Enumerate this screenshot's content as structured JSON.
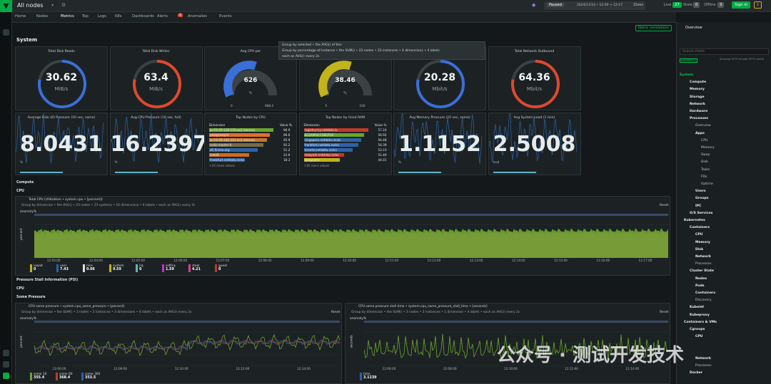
{
  "header": {
    "node_label": "All nodes",
    "paused": "Paused",
    "date": "2024/11/14 • 12:00 → 12:17",
    "window": "15min",
    "live": "Live",
    "live_count": "27",
    "stale": "Stale",
    "stale_count": "0",
    "offline": "Offline",
    "offline_count": "3",
    "signin": "Sign in",
    "alerts": "1"
  },
  "tabs": [
    "Home",
    "Nodes",
    "Metrics",
    "Top",
    "Logs",
    "K8s",
    "Dashboards",
    "Alerts",
    "Anomalies",
    "Events"
  ],
  "alert_badge": "2",
  "section": "System",
  "metric_corr": "Metric correlations",
  "popup": {
    "row1": "Group by selected  •  the AVG() of this",
    "row2": "Group by percentage-of-instance • the SUM() • 23 nodes • 23 instances • 4 dimensions • 4 labels",
    "row3": "each as AVG() every 2s"
  },
  "cards": [
    {
      "title": "Total Disk Reads",
      "value": "30.62",
      "unit": "MiB/s",
      "color": "#3a6fd8"
    },
    {
      "title": "Total Disk Writes",
      "value": "63.4",
      "unit": "MiB/s",
      "color": "#e0482c"
    },
    {
      "title": "Avg CPU per",
      "value": "626",
      "unit": "%",
      "min": "0",
      "max": "988.4",
      "color": "#3a6fd8"
    },
    {
      "title": "",
      "value": "38.46",
      "unit": "%",
      "min": "0",
      "max": "100",
      "color": "#c2b41a"
    },
    {
      "title": "Total Network Inbound",
      "value": "20.28",
      "unit": "Mbit/s",
      "color": "#3a6fd8"
    },
    {
      "title": "Total Network Outbound",
      "value": "64.36",
      "unit": "Mbit/s",
      "color": "#e0482c"
    }
  ],
  "row2": [
    {
      "title": "Average Disk I/O Pressure (10 sec, some)",
      "value": "8.0431",
      "unit": "%"
    },
    {
      "title": "Avg CPU Pressure (10 sec, full)",
      "value": "16.2397",
      "unit": "%"
    },
    {
      "title": "Top Nodes by CPU",
      "table": true
    },
    {
      "title": "Top Nodes by Used RAM",
      "table": true
    },
    {
      "title": "Avg Memory Pressure (10 sec, some)",
      "value": "1.1152",
      "unit": "%"
    },
    {
      "title": "Avg System Load (1 min)",
      "value": "2.5008",
      "unit": "load"
    }
  ],
  "cpu_table": {
    "header": [
      "Dimension",
      "Value %"
    ],
    "rows": [
      {
        "name": "ip-10-20-128-110.us2.internal",
        "v": "96.9",
        "c": "#6aa62d"
      },
      {
        "name": "postgresql-0",
        "v": "96.6",
        "c": "#e0702c"
      },
      {
        "name": "ip-10-20-142-243.ec2.internal",
        "v": "95.9",
        "c": "#c2782c"
      },
      {
        "name": "redis-master-0",
        "v": "92.2",
        "c": "#7a6a4a"
      },
      {
        "name": "d1.fincho.org",
        "v": "51.2",
        "c": "#2c63a8"
      },
      {
        "name": "zalotit",
        "v": "22.6",
        "c": "#d06a1a"
      },
      {
        "name": "frankfurt.netdata.rocks",
        "v": "18.3",
        "c": "#2c63a8"
      }
    ],
    "more": "+16 more values"
  },
  "ram_table": {
    "header": [
      "Dimension",
      "Value %"
    ],
    "rows": [
      {
        "name": "registry.my-netdata.io",
        "v": "57.24",
        "c": "#c0392b"
      },
      {
        "name": "EC2AMAZ-F5BQTAP",
        "v": "56.92",
        "c": "#6aa62d"
      },
      {
        "name": "singapore.netdata.rocks",
        "v": "56.48",
        "c": "#2c63a8"
      },
      {
        "name": "frankfurt.netdata.rocks",
        "v": "54.39",
        "c": "#2c63a8"
      },
      {
        "name": "toronto.netdata.rocks",
        "v": "53.23",
        "c": "#2c63a8"
      },
      {
        "name": "newyork.netdata.rocks",
        "v": "51.40",
        "c": "#c0392b"
      },
      {
        "name": "bangalore",
        "v": "44.01",
        "c": "#c2b41a"
      }
    ],
    "more": "+16 more values"
  },
  "compute": "Compute",
  "cpu": "CPU",
  "cpu_chart": {
    "title": "Total CPU (Utilization • system.cpu • [percent])",
    "controls": "Group by dimension  •  the AVG()  •  23 nodes  •  23 systems  •  10 dimensions  •  4 labels  •  each as AVG() every 2s",
    "anomaly": "anomaly%",
    "ylabel": "percent",
    "reset": "Reset",
    "ticks": [
      "12:03:00",
      "12:04:00",
      "12:05:00",
      "12:06:00",
      "12:07:00",
      "12:08:00",
      "12:09:00",
      "12:10:00",
      "12:11:00",
      "12:12:00",
      "12:13:00",
      "12:14:00",
      "12:15:00",
      "12:16:00",
      "12:17:00"
    ],
    "chips": [
      {
        "n": "iowait",
        "v": "0",
        "c": "#c2b41a"
      },
      {
        "n": "user",
        "v": "7.43",
        "c": "#2c63a8"
      },
      {
        "n": "nice",
        "v": "0.06",
        "c": "#ddd"
      },
      {
        "n": "system",
        "v": "9.59",
        "c": "#c2b41a"
      },
      {
        "n": "irq",
        "v": "0",
        "c": "#5fb4c9"
      },
      {
        "n": "softirq",
        "v": "1.59",
        "c": "#c036c0"
      },
      {
        "n": "steal",
        "v": "4.21",
        "c": "#e03a8a"
      },
      {
        "n": "guest",
        "v": "0",
        "c": "#c0392b"
      }
    ]
  },
  "psi": "Pressure Stall Information (PSI)",
  "psi_cpu": "CPU",
  "psi_some": "Some Pressure",
  "psi1": {
    "title": "CPU some pressure • system.cpu_some_pressure • [percent]",
    "controls": "Group by dimension  •  the SUM()  •  3 nodes  •  3 instances  •  3 dimensions  •  4 labels  •  each as AVG() every 2s",
    "anomaly": "anomaly%",
    "ylabel": "percent",
    "reset": "Reset",
    "ticks": [
      "12:06:00",
      "12:08:00",
      "12:10:00",
      "12:12:00",
      "12:14:00"
    ],
    "chips": [
      {
        "n": "some 10",
        "v": "355.4",
        "c": "#6aa62d"
      },
      {
        "n": "some 60",
        "v": "368.4",
        "c": "#c0392b"
      },
      {
        "n": "some 300",
        "v": "353.5",
        "c": "#2c63a8"
      }
    ]
  },
  "psi2": {
    "title": "CPU some pressure stall time • system.cpu_some_pressure_stall_time • [seconds]",
    "controls": "Group by dimension  •  the SUM()  •  3 nodes  •  3 instances  •  1 dimension  •  4 labels  •  each as AVG() every 2s",
    "anomaly": "anomaly%",
    "ylabel": "seconds",
    "reset": "Reset",
    "ticks": [
      "12:06:00",
      "12:08:00",
      "12:10:00",
      "12:12:00",
      "12:14:00"
    ],
    "chips": [
      {
        "n": "time",
        "v": "3.1239",
        "c": "#2c63a8"
      }
    ]
  },
  "sidebar": {
    "overview": "Overview",
    "search": "Search charts",
    "count": "Showing 9279 of total 9279 charts",
    "anomaly": "ANOMALY%",
    "items": [
      {
        "t": "System",
        "c": "g"
      },
      {
        "t": "Compute",
        "c": "b"
      },
      {
        "t": "Memory",
        "c": "b"
      },
      {
        "t": "Storage",
        "c": "b"
      },
      {
        "t": "Network",
        "c": "b"
      },
      {
        "t": "Hardware",
        "c": "b"
      },
      {
        "t": "Processes",
        "c": "b"
      },
      {
        "t": "Overview",
        "c": ""
      },
      {
        "t": "Apps",
        "c": "b"
      },
      {
        "t": "CPU",
        "c": ""
      },
      {
        "t": "Memory",
        "c": ""
      },
      {
        "t": "Swap",
        "c": ""
      },
      {
        "t": "Disk",
        "c": ""
      },
      {
        "t": "Tasks",
        "c": ""
      },
      {
        "t": "FDs",
        "c": ""
      },
      {
        "t": "Uptime",
        "c": ""
      },
      {
        "t": "Users",
        "c": "b"
      },
      {
        "t": "Groups",
        "c": "b"
      },
      {
        "t": "IPC",
        "c": "b"
      },
      {
        "t": "O/S Services",
        "c": "b"
      },
      {
        "t": "Kubernetes",
        "c": "b"
      },
      {
        "t": "Containers",
        "c": "b"
      },
      {
        "t": "CPU",
        "c": "b"
      },
      {
        "t": "Memory",
        "c": "b"
      },
      {
        "t": "Disk",
        "c": "b"
      },
      {
        "t": "Network",
        "c": "b"
      },
      {
        "t": "Processes",
        "c": ""
      },
      {
        "t": "Cluster State",
        "c": "b"
      },
      {
        "t": "Nodes",
        "c": "b"
      },
      {
        "t": "Pods",
        "c": "b"
      },
      {
        "t": "Containers",
        "c": "b"
      },
      {
        "t": "Discovery",
        "c": ""
      },
      {
        "t": "Kubelet",
        "c": "b"
      },
      {
        "t": "Kubeproxy",
        "c": "b"
      },
      {
        "t": "Containers & VMs",
        "c": "b"
      },
      {
        "t": "Cgroups",
        "c": "b"
      },
      {
        "t": "CPU",
        "c": "b"
      },
      {
        "t": "",
        "c": ""
      },
      {
        "t": "",
        "c": ""
      },
      {
        "t": "Network",
        "c": "b"
      },
      {
        "t": "Processes",
        "c": ""
      },
      {
        "t": "Docker",
        "c": "b"
      }
    ]
  },
  "watermark": "公众号 · 测试开发技术"
}
